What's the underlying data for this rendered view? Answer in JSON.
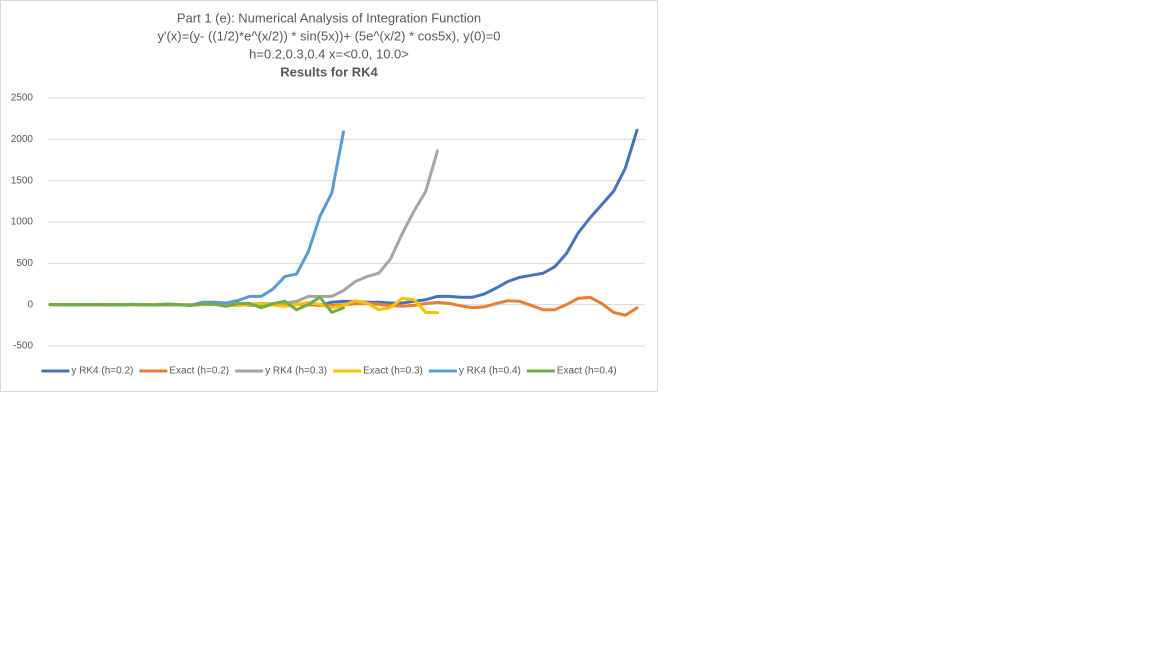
{
  "chart_data": {
    "type": "line",
    "title": [
      "Part 1 (e): Numerical Analysis of Integration Function",
      "y'(x)=(y- ((1/2)*e^(x/2)) * sin(5x))+ (5e^(x/2) * cos5x), y(0)=0",
      "h=0.2,0.3,0.4   x=<0.0, 10.0>",
      "Results for RK4"
    ],
    "categories": [
      null,
      null,
      null,
      null,
      null,
      null,
      null,
      null,
      null,
      null,
      null,
      null,
      null,
      null,
      null,
      null,
      null,
      null,
      null,
      null,
      null,
      null,
      null,
      null,
      null,
      null,
      null,
      null,
      null,
      null,
      null,
      null,
      null,
      null,
      null,
      null,
      null,
      null,
      null,
      null,
      null,
      null,
      null,
      null,
      null,
      null,
      null,
      null,
      null,
      null,
      null
    ],
    "ylim": [
      -500,
      2500
    ],
    "yticks": [
      -500,
      0,
      500,
      1000,
      1500,
      2000,
      2500
    ],
    "grid": true,
    "legend": "bottom",
    "series": [
      {
        "name": "y RK4 (h=0.2)",
        "color": "#4472c4",
        "values": [
          0,
          1,
          1,
          0,
          -1,
          -2,
          -1,
          1,
          2,
          1,
          -2,
          -3,
          -2,
          2,
          4,
          3,
          -2,
          -5,
          -5,
          1,
          7,
          7,
          0,
          -8,
          30,
          40,
          40,
          30,
          30,
          20,
          20,
          40,
          60,
          100,
          100,
          90,
          90,
          130,
          200,
          280,
          330,
          355,
          380,
          460,
          620,
          870,
          1050,
          1210,
          1370,
          1650,
          2110
        ]
      },
      {
        "name": "Exact (h=0.2)",
        "color": "#ed7d31",
        "values": [
          0,
          0.93,
          1.11,
          0.19,
          -1.13,
          -1.58,
          -0.51,
          1.32,
          2.2,
          1.01,
          -1.48,
          -3,
          -1.78,
          1.54,
          4.02,
          2.91,
          -1.43,
          -5.26,
          -4.54,
          1,
          6.74,
          6.83,
          -0.08,
          -8.44,
          -9.99,
          -1.61,
          10.27,
          14.23,
          4.46,
          -12.07,
          -19.85,
          -8.97,
          13.53,
          27.11,
          15.85,
          -14.18,
          -36.3,
          -26.04,
          13.22,
          47.62,
          40.69,
          -9.54,
          -61.13,
          -61.31,
          1.44,
          76.59,
          89.7,
          13.63,
          -93.32,
          -128.1,
          -38.9
        ]
      },
      {
        "name": "y RK4 (h=0.3)",
        "color": "#a5a5a5",
        "values": [
          0,
          1,
          0,
          -2,
          -1,
          2,
          1,
          -3,
          -2,
          3,
          3,
          -4,
          -5,
          4,
          7,
          -5,
          -10,
          5,
          14,
          10,
          20,
          40,
          100,
          100,
          100,
          170,
          280,
          340,
          380,
          550,
          860,
          1130,
          1370,
          1860,
          null,
          null,
          null,
          null,
          null,
          null,
          null,
          null,
          null,
          null,
          null,
          null,
          null,
          null,
          null,
          null,
          null
        ]
      },
      {
        "name": "Exact (h=0.3)",
        "color": "#ffc000",
        "values": [
          0,
          1.16,
          0.19,
          -1.53,
          -0.51,
          1.99,
          1.01,
          -2.51,
          -1.78,
          3.1,
          2.91,
          -3.71,
          -4.54,
          4.26,
          6.83,
          -4.63,
          -9.99,
          4.62,
          14.23,
          -3.92,
          -19.85,
          2.05,
          27.11,
          1.67,
          -36.3,
          -8.21,
          47.62,
          18.9,
          -61.13,
          -35.6,
          76.59,
          60.8,
          -93.32,
          -97.6,
          null,
          null,
          null,
          null,
          null,
          null,
          null,
          null,
          null,
          null,
          null,
          null,
          null,
          null,
          null,
          null,
          null
        ]
      },
      {
        "name": "y RK4 (h=0.4)",
        "color": "#5b9bd5",
        "values": [
          0,
          1,
          -1,
          0,
          2,
          -1,
          -2,
          4,
          -1,
          -4,
          7,
          0,
          -10,
          30,
          30,
          20,
          50,
          100,
          100,
          190,
          340,
          370,
          640,
          1070,
          1350,
          2090,
          null,
          null,
          null,
          null,
          null,
          null,
          null,
          null,
          null,
          null,
          null,
          null,
          null,
          null,
          null,
          null,
          null,
          null,
          null,
          null,
          null,
          null,
          null,
          null,
          null
        ]
      },
      {
        "name": "Exact (h=0.4)",
        "color": "#70ad47",
        "values": [
          0,
          1.11,
          -1.13,
          -0.51,
          2.2,
          -1.48,
          -1.78,
          4.02,
          -1.43,
          -4.54,
          6.74,
          -0.08,
          -9.99,
          10.27,
          4.46,
          -19.85,
          13.53,
          15.85,
          -36.3,
          13.22,
          40.69,
          -61.13,
          1.44,
          89.7,
          -93.32,
          -38.9,
          null,
          null,
          null,
          null,
          null,
          null,
          null,
          null,
          null,
          null,
          null,
          null,
          null,
          null,
          null,
          null,
          null,
          null,
          null,
          null,
          null,
          null,
          null,
          null,
          null
        ]
      }
    ]
  }
}
